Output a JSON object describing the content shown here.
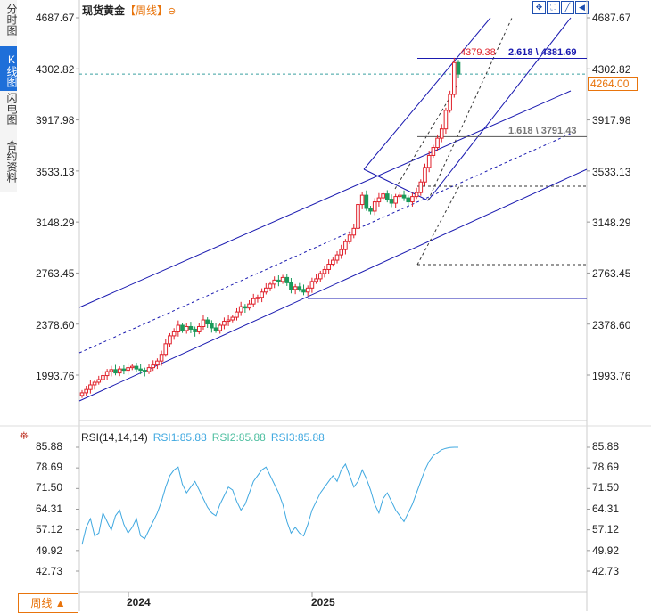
{
  "sidebar": {
    "tabs": [
      {
        "label": "分时图",
        "active": false
      },
      {
        "label": "K线图",
        "active": true
      },
      {
        "label": "闪电图",
        "active": false
      },
      {
        "label": "合约资料",
        "active": false
      }
    ]
  },
  "header": {
    "instrument": "现货黄金",
    "period": "【周线】",
    "tool_symbol": "⊖"
  },
  "toolbar": {
    "icons": [
      "crosshair-icon",
      "expand-icon",
      "line-tool-icon",
      "prev-icon"
    ]
  },
  "current_price": "4264.00",
  "period_selector": {
    "label": "周线",
    "arrow": "▲"
  },
  "rsi_header": {
    "main": "RSI(14,14,14)",
    "rsi1": "RSI1:85.88",
    "rsi2": "RSI2:85.88",
    "rsi3": "RSI3:85.88"
  },
  "fib_labels": {
    "high": "4379.38",
    "level1": "2.618 \\ 4381.69",
    "level2": "1.618 \\ 3791.43"
  },
  "colors": {
    "up": "#e0212b",
    "down": "#1a9a5a",
    "channel": "#1a1ab0",
    "rsi": "#3fa8e0",
    "accent": "#e8740c"
  },
  "chart_data": [
    {
      "type": "candlestick",
      "title": "现货黄金【周线】",
      "x_ticks": [
        "2024",
        "2025"
      ],
      "y_ticks": [
        "4687.67",
        "4302.82",
        "3917.98",
        "3533.13",
        "3148.29",
        "2763.45",
        "2378.60",
        "1993.76"
      ],
      "ylim": [
        1760,
        4760
      ],
      "current_price": 4264.0,
      "close_series": [
        1860,
        1885,
        1920,
        1940,
        1960,
        1990,
        2020,
        2035,
        2010,
        2040,
        2030,
        2050,
        2060,
        2040,
        2030,
        2020,
        2050,
        2070,
        2100,
        2150,
        2230,
        2290,
        2320,
        2370,
        2330,
        2360,
        2340,
        2320,
        2360,
        2410,
        2380,
        2350,
        2330,
        2370,
        2400,
        2410,
        2430,
        2470,
        2510,
        2500,
        2530,
        2570,
        2580,
        2620,
        2650,
        2680,
        2710,
        2700,
        2730,
        2690,
        2640,
        2660,
        2640,
        2620,
        2650,
        2700,
        2720,
        2760,
        2790,
        2830,
        2860,
        2900,
        2940,
        3000,
        3050,
        3100,
        3280,
        3350,
        3250,
        3230,
        3300,
        3330,
        3360,
        3320,
        3290,
        3340,
        3350,
        3330,
        3300,
        3340,
        3370,
        3450,
        3560,
        3650,
        3710,
        3780,
        3850,
        3990,
        4110,
        4350,
        4264
      ],
      "fib_levels": [
        {
          "ratio": 2.618,
          "value": 4381.69
        },
        {
          "ratio": 1.618,
          "value": 3791.43
        }
      ],
      "high": 4379.38
    },
    {
      "type": "line",
      "title": "RSI(14,14,14)",
      "y_ticks": [
        "85.88",
        "78.69",
        "71.50",
        "64.31",
        "57.12",
        "49.92",
        "42.73"
      ],
      "ylim": [
        40,
        88
      ],
      "series": [
        {
          "name": "RSI1",
          "values": [
            52,
            58,
            61,
            55,
            56,
            63,
            60,
            57,
            62,
            64,
            59,
            56,
            58,
            61,
            55,
            54,
            57,
            60,
            63,
            67,
            72,
            76,
            78,
            79,
            73,
            70,
            72,
            74,
            71,
            68,
            65,
            63,
            62,
            66,
            69,
            72,
            71,
            67,
            64,
            66,
            70,
            74,
            76,
            78,
            79,
            76,
            73,
            70,
            66,
            60,
            56,
            58,
            56,
            55,
            59,
            64,
            67,
            70,
            72,
            74,
            76,
            74,
            78,
            80,
            76,
            72,
            74,
            78,
            75,
            71,
            66,
            63,
            68,
            70,
            67,
            64,
            62,
            60,
            63,
            66,
            70,
            74,
            78,
            81,
            83,
            84,
            85,
            85.5,
            85.8,
            85.88,
            85.88
          ]
        }
      ]
    }
  ]
}
